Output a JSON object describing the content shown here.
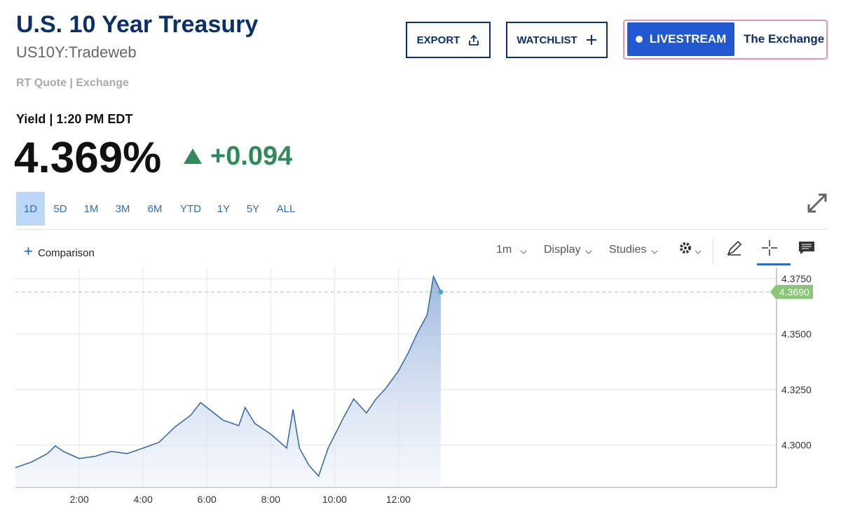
{
  "header": {
    "title": "U.S. 10 Year Treasury",
    "symbol": "US10Y:Tradeweb",
    "source": "RT Quote | Exchange"
  },
  "buttons": {
    "export": "EXPORT",
    "watchlist": "WATCHLIST",
    "livestream": "LIVESTREAM",
    "exchange": "The Exchange"
  },
  "quote": {
    "label": "Yield | 1:20 PM EDT",
    "price": "4.369%",
    "change": "+0.094"
  },
  "ranges": [
    "1D",
    "5D",
    "1M",
    "3M",
    "6M",
    "YTD",
    "1Y",
    "5Y",
    "ALL"
  ],
  "toolbar": {
    "comparison": "Comparison",
    "interval": "1m",
    "display": "Display",
    "studies": "Studies"
  },
  "chart_data": {
    "type": "line",
    "color": "#3a6ea8",
    "x": [
      0,
      0.5,
      1.0,
      1.25,
      1.5,
      2.0,
      2.5,
      3.0,
      3.5,
      4.0,
      4.5,
      5.0,
      5.5,
      5.8,
      6.0,
      6.5,
      7.0,
      7.2,
      7.5,
      8.0,
      8.5,
      8.7,
      8.9,
      9.2,
      9.5,
      9.8,
      10.0,
      10.3,
      10.6,
      11.0,
      11.3,
      11.6,
      12.0,
      12.3,
      12.6,
      12.9,
      13.1,
      13.33
    ],
    "values": [
      4.2899,
      4.2924,
      4.2962,
      4.2997,
      4.2972,
      4.294,
      4.295,
      4.2972,
      4.2962,
      4.2987,
      4.3013,
      4.3082,
      4.3136,
      4.3192,
      4.317,
      4.3113,
      4.3088,
      4.317,
      4.3098,
      4.305,
      4.2987,
      4.3161,
      4.2987,
      4.2909,
      4.2861,
      4.2987,
      4.3044,
      4.3129,
      4.3208,
      4.3145,
      4.3208,
      4.3255,
      4.3334,
      4.3413,
      4.3507,
      4.3586,
      4.376,
      4.369
    ],
    "current": {
      "value": 4.369,
      "label": "4.3690"
    },
    "xlim": [
      0,
      23.85
    ],
    "ylim": [
      4.281,
      4.38
    ],
    "xticks": [
      {
        "value": 2,
        "label": "2:00"
      },
      {
        "value": 4,
        "label": "4:00"
      },
      {
        "value": 6,
        "label": "6:00"
      },
      {
        "value": 8,
        "label": "8:00"
      },
      {
        "value": 10,
        "label": "10:00"
      },
      {
        "value": 12,
        "label": "12:00"
      }
    ],
    "yticks": [
      {
        "value": 4.3,
        "label": "4.3000"
      },
      {
        "value": 4.325,
        "label": "4.3250"
      },
      {
        "value": 4.35,
        "label": "4.3500"
      },
      {
        "value": 4.375,
        "label": "4.3750"
      }
    ],
    "grid": true
  }
}
